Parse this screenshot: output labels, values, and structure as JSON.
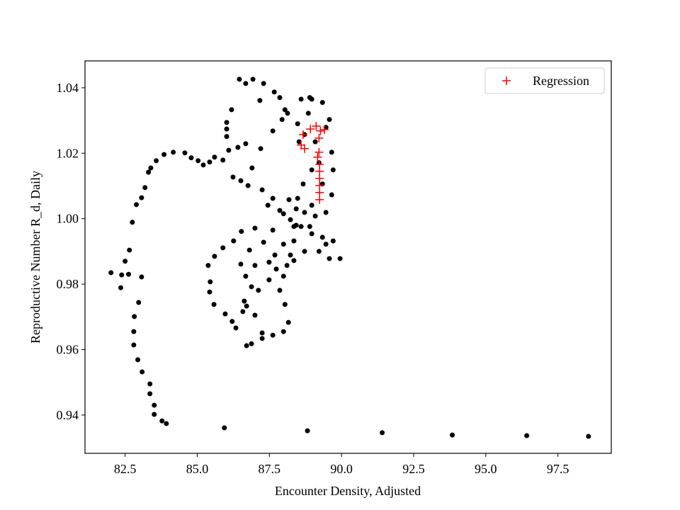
{
  "chart_data": {
    "type": "scatter",
    "x_label": "Encounter Density, Adjusted",
    "y_label": "Reproductive Number R_d, Daily",
    "xlim": [
      81.11,
      99.35
    ],
    "ylim": [
      0.9283,
      1.0482
    ],
    "xticks": [
      82.5,
      {
        "value": 85,
        "label": "85.0"
      },
      87.5,
      {
        "value": 90,
        "label": "90.0"
      },
      92.5,
      {
        "value": 95,
        "label": "95.0"
      },
      97.5
    ],
    "yticks": [
      0.94,
      0.96,
      0.98,
      {
        "value": 1,
        "label": "1.00"
      },
      1.02,
      1.04
    ],
    "legend": "upper right",
    "series": [
      {
        "color": "#000000",
        "marker": "dot",
        "x": [
          98.56,
          96.42,
          93.84,
          91.41,
          88.82,
          85.94,
          83.93,
          83.78,
          83.51,
          83.51,
          83.36,
          83.36,
          83.09,
          82.94,
          82.8,
          82.8,
          82.82,
          82.97,
          83.07,
          82.01,
          82.38,
          82.62,
          82.35,
          82.5,
          82.65,
          82.75,
          82.89,
          83.07,
          83.19,
          83.31,
          83.39,
          83.58,
          83.85,
          84.17,
          84.57,
          84.79,
          85.03,
          85.21,
          85.43,
          85.6,
          85.89,
          86.09,
          86.41,
          86.68,
          86.02,
          86.02,
          86.02,
          86.19,
          86.46,
          86.68,
          86.93,
          87.3,
          87.17,
          87.67,
          87.86,
          88.04,
          87.94,
          87.62,
          87.2,
          86.9,
          86.76,
          86.51,
          86.24,
          87.25,
          87.62,
          87.45,
          87.86,
          88.18,
          88.43,
          88.72,
          88.97,
          89.09,
          88.23,
          87.62,
          87.0,
          86.53,
          86.26,
          85.89,
          85.6,
          85.38,
          85.45,
          85.43,
          85.58,
          85.97,
          86.21,
          86.34,
          86.58,
          86.63,
          86.68,
          86.51,
          86.81,
          87.3,
          87.0,
          86.88,
          87.12,
          87.49,
          87.74,
          87.69,
          87.99,
          88.35,
          88.6,
          88.97,
          89.34,
          89.71,
          89.58,
          89.95,
          89.22,
          88.72,
          88.23,
          88.11,
          87.99,
          87.86,
          88.04,
          88.16,
          87.99,
          87.62,
          87.25,
          86.88,
          86.71,
          87.25,
          87.0,
          86.71,
          87.49,
          88.35,
          89.46,
          89.66,
          89.71,
          89.66,
          89.46,
          89.58,
          89.34,
          88.97,
          88.6,
          88.85,
          89.09,
          89.22,
          89.34,
          88.97,
          88.67,
          88.48,
          88.35,
          87.99,
          88.53,
          88.72,
          88.48,
          88.9,
          88.13,
          88.43,
          89.46,
          88.9
        ],
        "y": [
          0.9335,
          0.9337,
          0.9339,
          0.9346,
          0.9352,
          0.9361,
          0.9374,
          0.9382,
          0.9402,
          0.943,
          0.9465,
          0.9495,
          0.9532,
          0.9569,
          0.9614,
          0.9655,
          0.9701,
          0.9744,
          0.9822,
          0.9835,
          0.9828,
          0.983,
          0.9789,
          0.987,
          0.9904,
          0.9989,
          1.0043,
          1.0064,
          1.0095,
          1.0142,
          1.0155,
          1.0177,
          1.0196,
          1.0203,
          1.0201,
          1.0186,
          1.0177,
          1.0164,
          1.0173,
          1.0188,
          1.0179,
          1.0209,
          1.0218,
          1.0229,
          1.0251,
          1.0274,
          1.0294,
          1.0333,
          1.0426,
          1.0413,
          1.0426,
          1.0413,
          1.0361,
          1.0387,
          1.037,
          1.0333,
          1.0303,
          1.0268,
          1.0214,
          1.0155,
          1.0101,
          1.0116,
          1.0127,
          1.0088,
          1.0062,
          1.0041,
          1.0025,
          1.0058,
          1.003,
          1.0019,
          1.0041,
          1.0008,
          0.9997,
          0.9965,
          0.9971,
          0.9961,
          0.9932,
          0.9911,
          0.9885,
          0.9857,
          0.9807,
          0.9776,
          0.9738,
          0.9709,
          0.9686,
          0.9666,
          0.9716,
          0.9748,
          0.9824,
          0.9861,
          0.9904,
          0.9928,
          0.9857,
          0.9792,
          0.9781,
          0.9813,
          0.9846,
          0.9889,
          0.9922,
          0.9932,
          0.9976,
          0.9954,
          0.9943,
          0.9932,
          0.9878,
          0.9878,
          0.99,
          0.99,
          0.9889,
          0.9857,
          0.9824,
          0.9781,
          0.9738,
          0.9683,
          0.9655,
          0.9644,
          0.9634,
          0.9618,
          0.9612,
          0.9651,
          0.9705,
          0.9733,
          0.9867,
          0.9872,
          1.0019,
          1.0073,
          1.0149,
          1.0203,
          1.0279,
          1.0303,
          1.0355,
          1.0365,
          1.0365,
          1.0322,
          1.0235,
          1.0171,
          1.0106,
          1.0149,
          1.0106,
          1.0062,
          0.9976,
          1.0015,
          1.0235,
          1.0257,
          1.029,
          1.037,
          1.0322,
          0.998,
          0.9922,
          0.9976
        ]
      },
      {
        "name": "Regression",
        "color": "#ff0000",
        "marker": "plus",
        "x": [
          88.67,
          88.6,
          88.72,
          88.92,
          89.12,
          89.27,
          89.41,
          89.22,
          89.22,
          89.17,
          89.24,
          89.24,
          89.24,
          89.24,
          89.24,
          89.24
        ],
        "y": [
          1.0257,
          1.0225,
          1.0214,
          1.0274,
          1.0283,
          1.0268,
          1.0272,
          1.0246,
          1.0203,
          1.0188,
          1.0166,
          1.0145,
          1.0123,
          1.0101,
          1.008,
          1.0058
        ]
      }
    ]
  }
}
